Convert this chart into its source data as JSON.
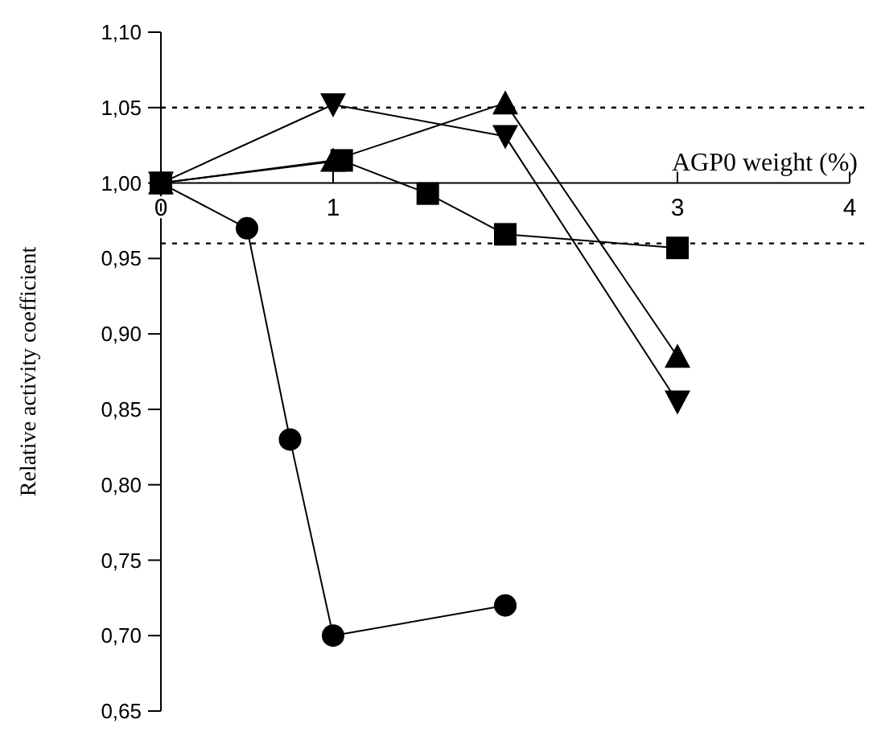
{
  "chart_data": {
    "type": "line",
    "xlabel": "AGP0 weight (%)",
    "ylabel": "Relative activity coefficient",
    "xlim": [
      0,
      4
    ],
    "xticks": [
      0,
      1,
      3,
      4
    ],
    "ylim": [
      0.65,
      1.1
    ],
    "yticks": [
      {
        "value": 0.65,
        "label": "0,65"
      },
      {
        "value": 0.7,
        "label": "0,70"
      },
      {
        "value": 0.75,
        "label": "0,75"
      },
      {
        "value": 0.8,
        "label": "0,80"
      },
      {
        "value": 0.85,
        "label": "0,85"
      },
      {
        "value": 0.9,
        "label": "0,90"
      },
      {
        "value": 0.95,
        "label": "0,95"
      },
      {
        "value": 1.0,
        "label": "1,00"
      },
      {
        "value": 1.05,
        "label": "1,05"
      },
      {
        "value": 1.1,
        "label": "1,10"
      }
    ],
    "ref_lines": [
      {
        "axis": "y",
        "value": 1.05,
        "line_style": "dotted"
      },
      {
        "axis": "y",
        "value": 0.96,
        "line_style": "dotted"
      }
    ],
    "series": [
      {
        "color": "#000000",
        "marker": "circle",
        "x": [
          0,
          0.5,
          0.75,
          1,
          2
        ],
        "values": [
          1.0,
          0.97,
          0.83,
          0.7,
          0.72
        ]
      },
      {
        "color": "#000000",
        "marker": "square",
        "x": [
          0,
          1.05,
          1.55,
          2,
          3
        ],
        "values": [
          1.0,
          1.015,
          0.993,
          0.966,
          0.957
        ]
      },
      {
        "color": "#000000",
        "marker": "triangle",
        "x": [
          0,
          1,
          2,
          3
        ],
        "values": [
          1.0,
          1.015,
          1.053,
          0.885
        ]
      },
      {
        "color": "#000000",
        "marker": "triangle-down",
        "x": [
          0,
          1,
          2,
          3
        ],
        "values": [
          1.0,
          1.052,
          1.031,
          0.855
        ]
      }
    ]
  }
}
